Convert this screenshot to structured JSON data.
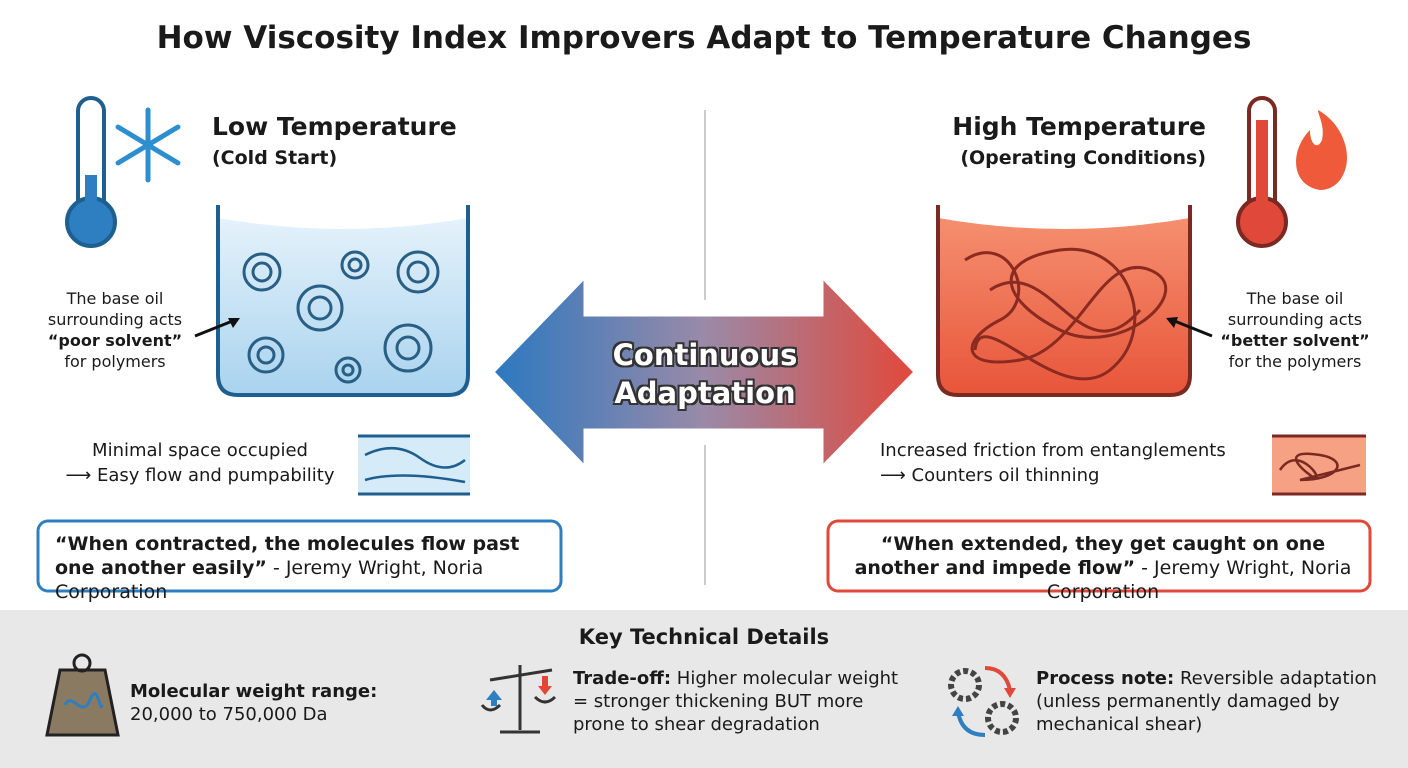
{
  "title": "How Viscosity Index Improvers Adapt to Temperature Changes",
  "left": {
    "heading": "Low Temperature",
    "subheading": "(Cold Start)",
    "annotation": {
      "before": "The base oil surrounding acts",
      "bold": "“poor solvent”",
      "after": "for polymers"
    },
    "effect": [
      "Minimal space occupied",
      "⟶ Easy flow and pumpability"
    ],
    "quote": {
      "text": "“When contracted, the molecules flow past one another easily”",
      "source": "- Jeremy Wright, Noria Corporation"
    }
  },
  "center": {
    "label": "Continuous Adaptation"
  },
  "right": {
    "heading": "High Temperature",
    "subheading": "(Operating Conditions)",
    "annotation": {
      "before": "The base oil surrounding acts",
      "bold": "“better solvent”",
      "after": "for the polymers"
    },
    "effect": [
      "Increased friction from entanglements",
      "⟶ Counters oil thinning"
    ],
    "quote": {
      "text": "“When extended, they get caught on one another and impede flow”",
      "source": "- Jeremy Wright, Noria Corporation"
    }
  },
  "footer": {
    "title": "Key Technical Details",
    "items": [
      {
        "label": "Molecular weight range:",
        "text": "20,000 to 750,000 Da"
      },
      {
        "label": "Trade-off:",
        "text": "Higher molecular weight = stronger thickening BUT more prone to shear degradation"
      },
      {
        "label": "Process note:",
        "text": "Reversible adaptation (unless permanently damaged by mechanical shear)"
      }
    ]
  }
}
